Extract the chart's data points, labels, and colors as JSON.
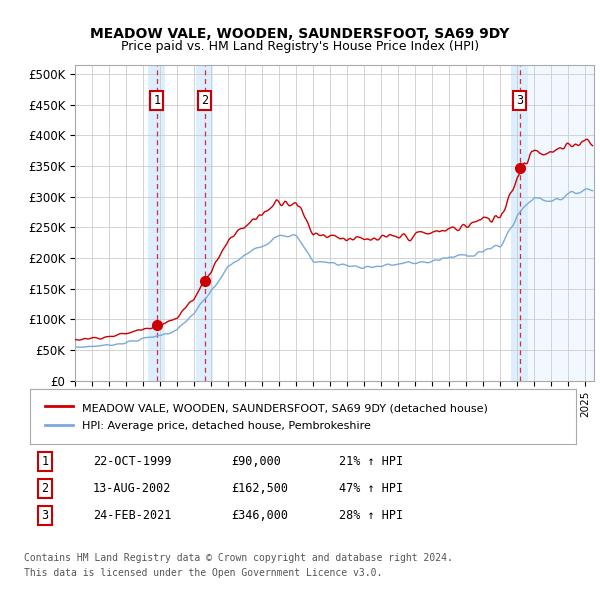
{
  "title": "MEADOW VALE, WOODEN, SAUNDERSFOOT, SA69 9DY",
  "subtitle": "Price paid vs. HM Land Registry's House Price Index (HPI)",
  "ylabel_ticks": [
    "£0",
    "£50K",
    "£100K",
    "£150K",
    "£200K",
    "£250K",
    "£300K",
    "£350K",
    "£400K",
    "£450K",
    "£500K"
  ],
  "ytick_values": [
    0,
    50000,
    100000,
    150000,
    200000,
    250000,
    300000,
    350000,
    400000,
    450000,
    500000
  ],
  "xlim_start": 1995.0,
  "xlim_end": 2025.5,
  "ylim": [
    0,
    515000
  ],
  "sales": [
    {
      "date": 1999.81,
      "price": 90000,
      "label": "1"
    },
    {
      "date": 2002.62,
      "price": 162500,
      "label": "2"
    },
    {
      "date": 2021.15,
      "price": 346000,
      "label": "3"
    }
  ],
  "legend_line1": "MEADOW VALE, WOODEN, SAUNDERSFOOT, SA69 9DY (detached house)",
  "legend_line2": "HPI: Average price, detached house, Pembrokeshire",
  "table": [
    {
      "num": "1",
      "date": "22-OCT-1999",
      "price": "£90,000",
      "change": "21% ↑ HPI"
    },
    {
      "num": "2",
      "date": "13-AUG-2002",
      "price": "£162,500",
      "change": "47% ↑ HPI"
    },
    {
      "num": "3",
      "date": "24-FEB-2021",
      "price": "£346,000",
      "change": "28% ↑ HPI"
    }
  ],
  "footnote1": "Contains HM Land Registry data © Crown copyright and database right 2024.",
  "footnote2": "This data is licensed under the Open Government Licence v3.0.",
  "sale_color": "#cc0000",
  "hpi_color": "#7aaadd",
  "shading_color": "#ddeeff",
  "grid_color": "#cccccc",
  "background_color": "#ffffff"
}
